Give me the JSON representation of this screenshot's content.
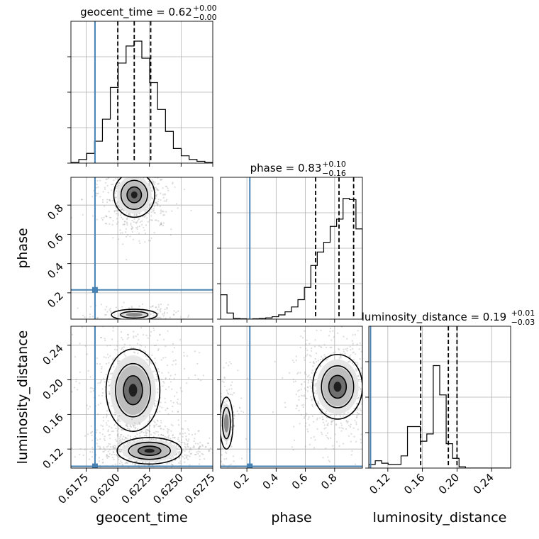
{
  "chart_data": {
    "type": "corner",
    "parameters": [
      "geocent_time",
      "phase",
      "luminosity_distance"
    ],
    "titles": [
      {
        "label": "geocent_time = 0.62",
        "sup": "+0.00",
        "sub": "−0.00"
      },
      {
        "label": "phase = 0.83",
        "sup": "+0.10",
        "sub": "−0.16"
      },
      {
        "label": "luminosity_distance = 0.19",
        "sup": "+0.01",
        "sub": "−0.03"
      }
    ],
    "axis_labels": [
      "geocent_time",
      "phase",
      "luminosity_distance"
    ],
    "ranges": [
      [
        0.6163,
        0.6275
      ],
      [
        0.02,
        0.99
      ],
      [
        0.098,
        0.262
      ]
    ],
    "ticks": [
      {
        "values": [
          0.6175,
          0.62,
          0.6225,
          0.625,
          0.6275
        ],
        "labels": [
          "0.6175",
          "0.6200",
          "0.6225",
          "0.6250",
          "0.6275"
        ]
      },
      {
        "values": [
          0.2,
          0.4,
          0.6,
          0.8
        ],
        "labels": [
          "0.2",
          "0.4",
          "0.6",
          "0.8"
        ]
      },
      {
        "values": [
          0.12,
          0.16,
          0.2,
          0.24
        ],
        "labels": [
          "0.12",
          "0.16",
          "0.20",
          "0.24"
        ]
      }
    ],
    "truths": [
      0.6182,
      0.22,
      0.1
    ],
    "quantiles": [
      [
        0.62,
        0.6213,
        0.6226
      ],
      [
        0.67,
        0.83,
        0.93
      ],
      [
        0.158,
        0.19,
        0.2
      ]
    ],
    "histograms": [
      [
        0.005,
        0.03,
        0.08,
        0.18,
        0.36,
        0.62,
        0.82,
        0.96,
        1.0,
        0.86,
        0.66,
        0.44,
        0.26,
        0.12,
        0.06,
        0.03,
        0.015,
        0.005
      ],
      [
        0.2,
        0.05,
        0.005,
        0.003,
        0.0,
        0.003,
        0.005,
        0.01,
        0.02,
        0.035,
        0.06,
        0.1,
        0.16,
        0.26,
        0.44,
        0.55,
        0.63,
        0.76,
        0.82,
        0.99,
        0.98,
        0.74
      ],
      [
        0.03,
        0.06,
        0.04,
        0.03,
        0.03,
        0.1,
        0.34,
        0.34,
        0.22,
        0.28,
        0.84,
        0.6,
        0.2,
        0.08,
        0.01,
        0.0,
        0.0,
        0.0,
        0.0,
        0.0,
        0.0,
        0.0
      ]
    ],
    "contour_clusters": [
      {
        "col": 0,
        "row": 1,
        "center": [
          0.6213,
          0.87
        ],
        "sigma": [
          0.00095,
          0.09
        ]
      },
      {
        "col": 0,
        "row": 1,
        "center": [
          0.6213,
          0.05
        ],
        "sigma": [
          0.0012,
          0.025
        ]
      },
      {
        "col": 0,
        "row": 2,
        "center": [
          0.6212,
          0.188
        ],
        "sigma": [
          0.00125,
          0.028
        ]
      },
      {
        "col": 0,
        "row": 2,
        "center": [
          0.6225,
          0.118
        ],
        "sigma": [
          0.0015,
          0.009
        ]
      },
      {
        "col": 1,
        "row": 2,
        "center": [
          0.82,
          0.192
        ],
        "sigma": [
          0.1,
          0.022
        ]
      },
      {
        "col": 1,
        "row": 2,
        "center": [
          0.06,
          0.15
        ],
        "sigma": [
          0.03,
          0.02
        ]
      }
    ],
    "grid": true
  }
}
